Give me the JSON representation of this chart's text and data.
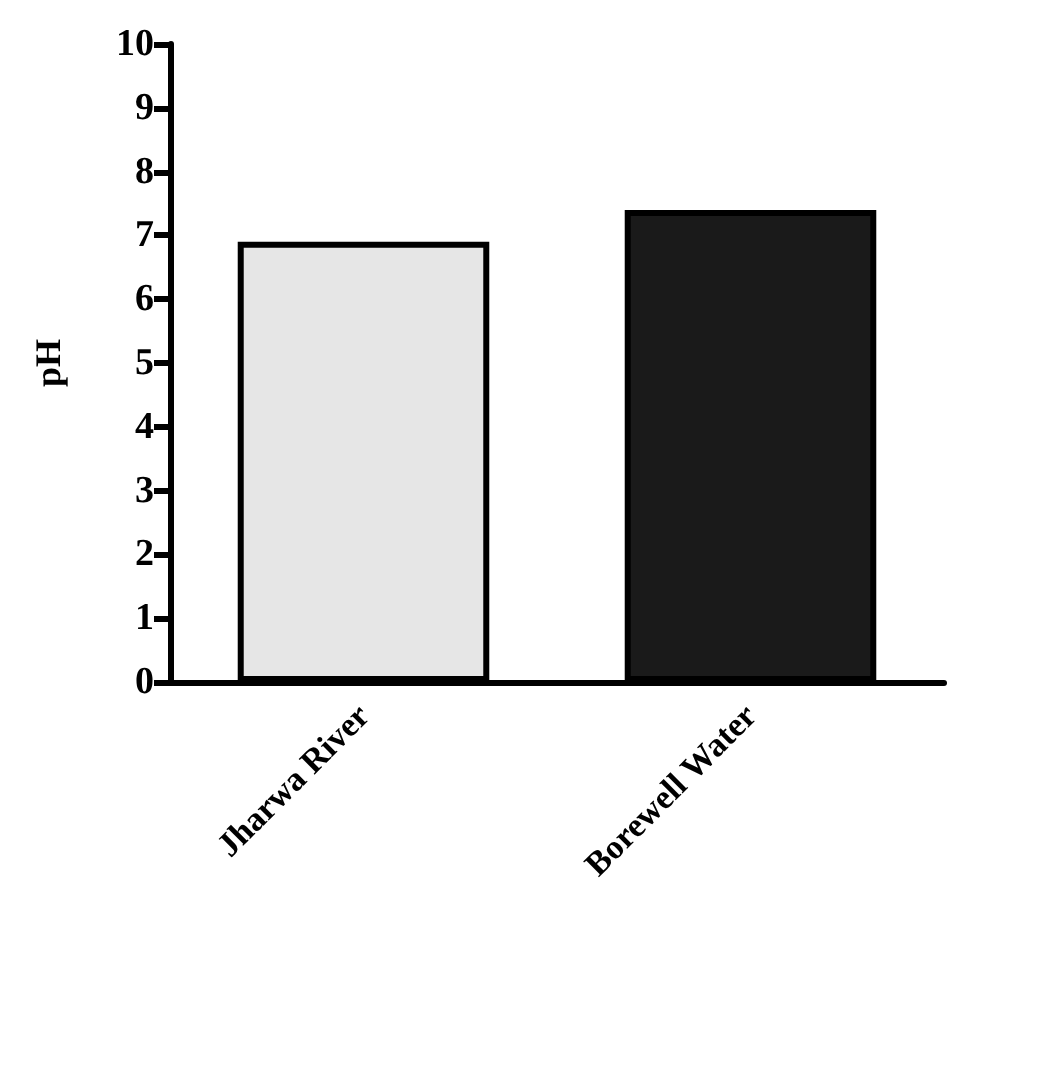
{
  "chart_data": {
    "type": "bar",
    "ylabel": "pH",
    "categories": [
      "Jharwa River",
      "Borewell Water"
    ],
    "values": [
      6.9,
      7.4
    ],
    "colors": [
      "#e6e6e6",
      "#1a1a1a"
    ],
    "ylim": [
      0,
      10
    ],
    "yticks": [
      0,
      1,
      2,
      3,
      4,
      5,
      6,
      7,
      8,
      9,
      10
    ],
    "grid": false
  }
}
